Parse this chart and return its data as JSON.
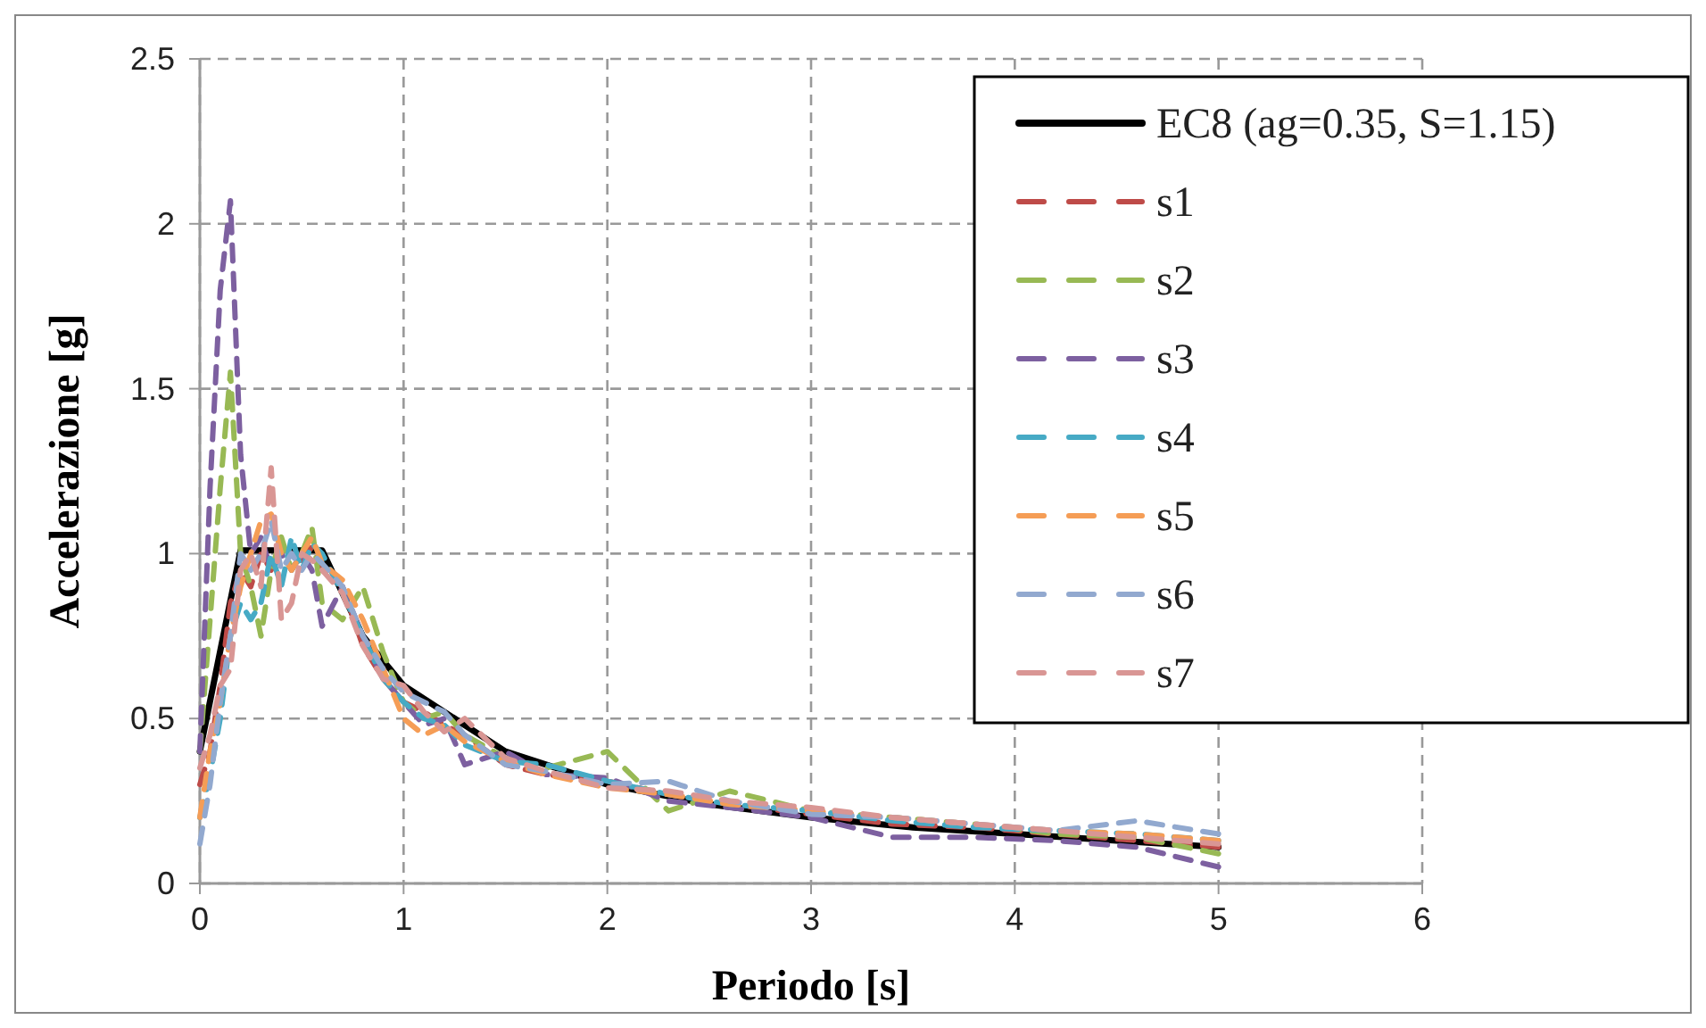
{
  "chart_data": {
    "type": "line",
    "xlabel": "Periodo [s]",
    "ylabel": "Accelerazione [g]",
    "xlim": [
      0,
      6
    ],
    "xticks": [
      0,
      1,
      2,
      3,
      4,
      5,
      6
    ],
    "ylim": [
      0,
      2.5
    ],
    "yticks": [
      0,
      0.5,
      1,
      1.5,
      2,
      2.5
    ],
    "grid": true,
    "legend": "top right",
    "x": [
      0,
      0.05,
      0.1,
      0.15,
      0.2,
      0.25,
      0.3,
      0.35,
      0.4,
      0.45,
      0.5,
      0.55,
      0.6,
      0.7,
      0.8,
      0.9,
      1.0,
      1.1,
      1.2,
      1.3,
      1.5,
      1.7,
      2.0,
      2.3,
      2.6,
      3.0,
      3.4,
      3.8,
      4.2,
      4.6,
      5.0
    ],
    "series": [
      {
        "name": "EC8 (ag=0.35, S=1.15)",
        "color": "#000000",
        "line_style": "solid",
        "x": [
          0,
          0.2,
          0.6,
          0.8,
          1,
          1.5,
          2,
          2.5,
          3,
          3.5,
          4,
          4.5,
          5
        ],
        "values": [
          0.4,
          1.01,
          1.01,
          0.75,
          0.6,
          0.4,
          0.3,
          0.24,
          0.2,
          0.17,
          0.15,
          0.13,
          0.11
        ]
      },
      {
        "name": "s1",
        "color": "#be4b48",
        "line_style": "dashed",
        "values": [
          0.3,
          0.4,
          0.6,
          0.85,
          0.95,
          0.9,
          1.0,
          0.95,
          1.02,
          1.0,
          0.98,
          1.02,
          0.95,
          0.9,
          0.72,
          0.62,
          0.55,
          0.52,
          0.48,
          0.45,
          0.36,
          0.33,
          0.31,
          0.27,
          0.24,
          0.21,
          0.18,
          0.17,
          0.15,
          0.13,
          0.11
        ]
      },
      {
        "name": "s2",
        "color": "#98b954",
        "line_style": "dashed",
        "values": [
          0.4,
          0.8,
          1.2,
          1.55,
          1.0,
          0.9,
          0.75,
          0.95,
          1.05,
          0.95,
          1.0,
          1.08,
          0.85,
          0.8,
          0.9,
          0.7,
          0.55,
          0.5,
          0.52,
          0.45,
          0.38,
          0.35,
          0.4,
          0.22,
          0.28,
          0.22,
          0.2,
          0.18,
          0.15,
          0.14,
          0.09
        ]
      },
      {
        "name": "s3",
        "color": "#7d60a0",
        "line_style": "dashed",
        "values": [
          0.4,
          1.2,
          1.8,
          2.07,
          1.3,
          1.0,
          1.05,
          0.95,
          1.0,
          0.95,
          1.0,
          0.95,
          0.78,
          0.9,
          0.75,
          0.62,
          0.55,
          0.48,
          0.5,
          0.36,
          0.4,
          0.33,
          0.32,
          0.25,
          0.23,
          0.2,
          0.14,
          0.14,
          0.13,
          0.11,
          0.05
        ]
      },
      {
        "name": "s4",
        "color": "#46aac5",
        "line_style": "dashed",
        "values": [
          0.2,
          0.33,
          0.5,
          0.75,
          0.85,
          0.8,
          0.85,
          1.0,
          0.9,
          1.05,
          0.95,
          1.03,
          1.0,
          0.88,
          0.75,
          0.62,
          0.55,
          0.5,
          0.48,
          0.42,
          0.37,
          0.36,
          0.31,
          0.27,
          0.24,
          0.22,
          0.19,
          0.17,
          0.16,
          0.15,
          0.13
        ]
      },
      {
        "name": "s5",
        "color": "#f59d56",
        "line_style": "dashed",
        "values": [
          0.2,
          0.4,
          0.55,
          0.75,
          0.9,
          1.0,
          1.1,
          1.12,
          1.0,
          0.95,
          1.0,
          1.05,
          0.97,
          0.92,
          0.8,
          0.65,
          0.5,
          0.45,
          0.48,
          0.43,
          0.37,
          0.33,
          0.29,
          0.27,
          0.24,
          0.22,
          0.2,
          0.18,
          0.16,
          0.15,
          0.13
        ]
      },
      {
        "name": "s6",
        "color": "#92a9cf",
        "line_style": "dashed",
        "values": [
          0.12,
          0.3,
          0.55,
          0.75,
          1.0,
          0.95,
          1.0,
          1.1,
          0.95,
          1.0,
          0.95,
          1.0,
          0.97,
          0.9,
          0.75,
          0.65,
          0.58,
          0.55,
          0.52,
          0.45,
          0.36,
          0.34,
          0.3,
          0.31,
          0.25,
          0.21,
          0.2,
          0.18,
          0.16,
          0.19,
          0.15
        ]
      },
      {
        "name": "s7",
        "color": "#d99694",
        "line_style": "dashed",
        "values": [
          0.35,
          0.45,
          0.6,
          0.65,
          0.95,
          1.0,
          0.9,
          1.26,
          0.8,
          0.85,
          1.0,
          0.98,
          0.95,
          0.88,
          0.72,
          0.62,
          0.6,
          0.52,
          0.46,
          0.5,
          0.38,
          0.34,
          0.29,
          0.28,
          0.25,
          0.23,
          0.2,
          0.18,
          0.16,
          0.14,
          0.12
        ]
      }
    ]
  }
}
